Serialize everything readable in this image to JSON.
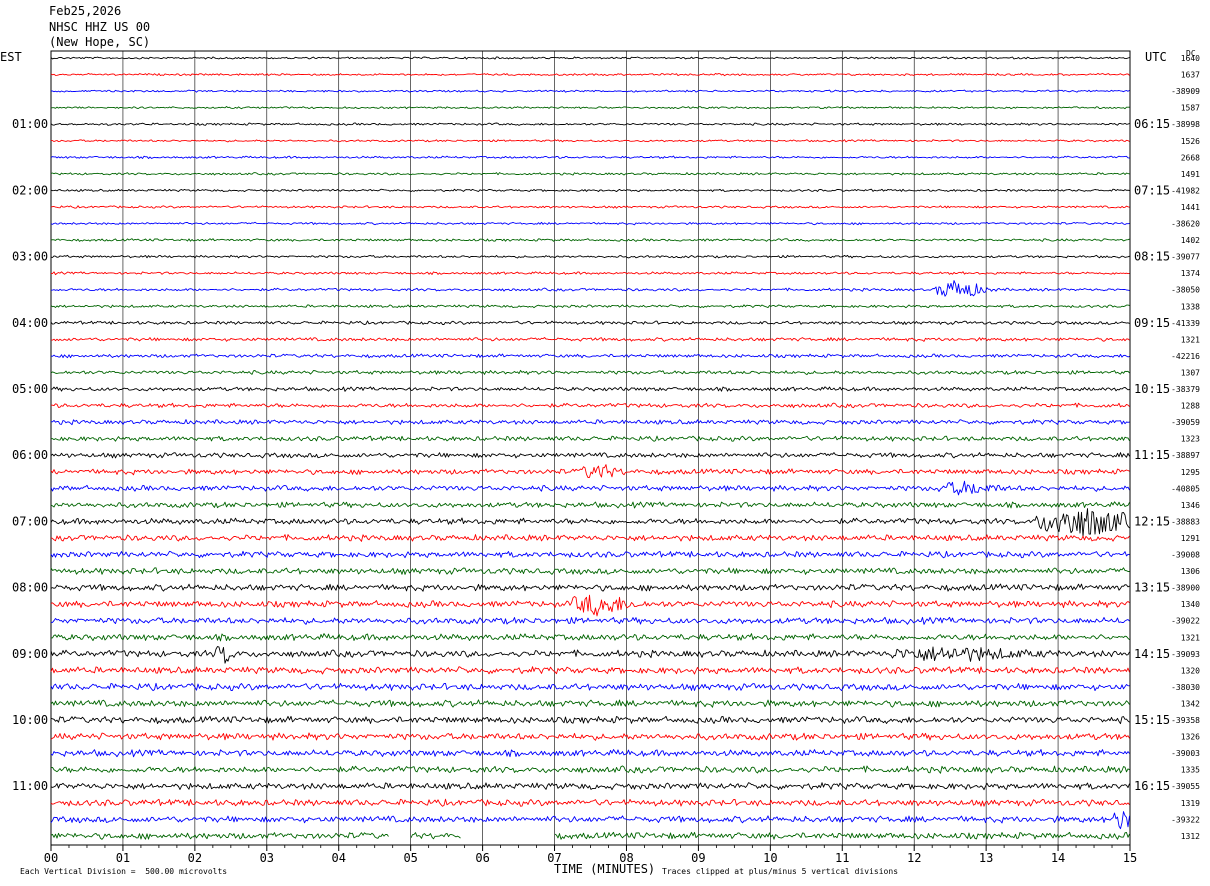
{
  "header": {
    "date": "Feb25,2026",
    "station": "NHSC HHZ US 00",
    "location": "(New Hope, SC)"
  },
  "left_axis_label": "EST",
  "right_axis_label": "UTC",
  "dc_label": "DC",
  "footer": {
    "vertical_division": "Each Vertical Division =  500.00 microvolts",
    "clip_note": "Traces clipped at plus/minus 5 vertical divisions"
  },
  "colors": {
    "trace_cycle": [
      "#000000",
      "#ff0000",
      "#0000ff",
      "#006400"
    ],
    "grid": "#000000",
    "background": "#ffffff"
  },
  "chart_data": {
    "type": "line",
    "title": "NHSC HHZ US 00",
    "xlabel": "TIME (MINUTES)",
    "ylabel": "",
    "xlim": [
      0,
      15
    ],
    "x_ticks": [
      "00",
      "01",
      "02",
      "03",
      "04",
      "05",
      "06",
      "07",
      "08",
      "09",
      "10",
      "11",
      "12",
      "13",
      "14",
      "15"
    ],
    "rows_per_hour": 4,
    "row_count": 48,
    "left_hour_labels": [
      {
        "row": 4,
        "label": "01:00"
      },
      {
        "row": 8,
        "label": "02:00"
      },
      {
        "row": 12,
        "label": "03:00"
      },
      {
        "row": 16,
        "label": "04:00"
      },
      {
        "row": 20,
        "label": "05:00"
      },
      {
        "row": 24,
        "label": "06:00"
      },
      {
        "row": 28,
        "label": "07:00"
      },
      {
        "row": 32,
        "label": "08:00"
      },
      {
        "row": 36,
        "label": "09:00"
      },
      {
        "row": 40,
        "label": "10:00"
      },
      {
        "row": 44,
        "label": "11:00"
      }
    ],
    "right_hour_labels": [
      {
        "row": 4,
        "label": "06:15"
      },
      {
        "row": 8,
        "label": "07:15"
      },
      {
        "row": 12,
        "label": "08:15"
      },
      {
        "row": 16,
        "label": "09:15"
      },
      {
        "row": 20,
        "label": "10:15"
      },
      {
        "row": 24,
        "label": "11:15"
      },
      {
        "row": 28,
        "label": "12:15"
      },
      {
        "row": 32,
        "label": "13:15"
      },
      {
        "row": 36,
        "label": "14:15"
      },
      {
        "row": 40,
        "label": "15:15"
      },
      {
        "row": 44,
        "label": "16:15"
      }
    ],
    "dc_offsets": [
      "1640",
      "1637",
      "-38909",
      "1587",
      "-38998",
      "1526",
      "2668",
      "1491",
      "-41982",
      "1441",
      "-38620",
      "1402",
      "-39077",
      "1374",
      "-38050",
      "1338",
      "-41339",
      "1321",
      "-42216",
      "1307",
      "-38379",
      "1288",
      "-39059",
      "1323",
      "-38897",
      "1295",
      "-40805",
      "1346",
      "-38883",
      "1291",
      "-39008",
      "1306",
      "-38900",
      "1340",
      "-39022",
      "1321",
      "-39093",
      "1320",
      "-38030",
      "1342",
      "-39358",
      "1326",
      "-39003",
      "1335",
      "-39055",
      "1319",
      "-39322",
      "1312"
    ],
    "amplitude_by_row": [
      0.8,
      0.8,
      0.8,
      0.8,
      0.9,
      0.8,
      0.9,
      0.9,
      0.9,
      0.9,
      0.9,
      1.0,
      1.0,
      1.0,
      1.1,
      1.1,
      1.3,
      1.4,
      1.4,
      1.5,
      1.6,
      1.7,
      1.8,
      1.9,
      2.0,
      2.1,
      2.2,
      2.2,
      2.4,
      2.4,
      2.4,
      2.5,
      2.6,
      2.6,
      2.6,
      2.6,
      2.7,
      2.7,
      2.7,
      2.7,
      2.7,
      2.7,
      2.6,
      2.6,
      2.6,
      2.6,
      2.6,
      2.6
    ],
    "events": [
      {
        "row": 14,
        "minute": 12.6,
        "width_min": 0.5,
        "amp": 9
      },
      {
        "row": 25,
        "minute": 7.6,
        "width_min": 0.4,
        "amp": 6
      },
      {
        "row": 26,
        "minute": 12.7,
        "width_min": 0.6,
        "amp": 5
      },
      {
        "row": 28,
        "minute": 14.3,
        "width_min": 1.0,
        "amp": 14
      },
      {
        "row": 33,
        "minute": 7.6,
        "width_min": 0.6,
        "amp": 9
      },
      {
        "row": 36,
        "minute": 2.4,
        "width_min": 0.2,
        "amp": 8
      },
      {
        "row": 36,
        "minute": 12.5,
        "width_min": 1.4,
        "amp": 5
      },
      {
        "row": 46,
        "minute": 14.9,
        "width_min": 0.25,
        "amp": 9
      }
    ],
    "gaps": [
      {
        "row": 47,
        "from": 4.7,
        "to": 5.0
      },
      {
        "row": 47,
        "from": 5.7,
        "to": 7.0
      }
    ]
  }
}
